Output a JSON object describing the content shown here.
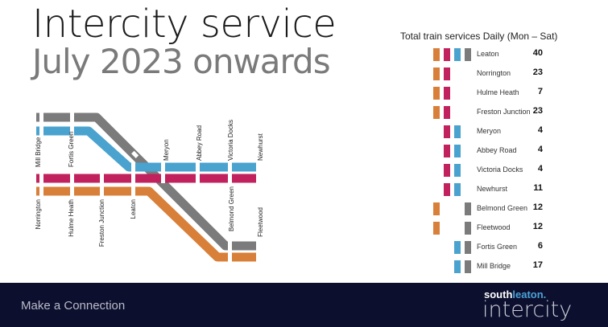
{
  "header": {
    "title_line1": "Intercity service",
    "title_line2": "July 2023 onwards"
  },
  "colors": {
    "grey": "#7b7b7b",
    "blue": "#4aa3cf",
    "magenta": "#c1225d",
    "orange": "#d8803a",
    "footer_bg": "#0d0f2e"
  },
  "map": {
    "stations": [
      "Mill Bridge",
      "Fortis Green",
      "Meryon",
      "Abbey Road",
      "Victoria Docks",
      "Newhurst",
      "Norrington",
      "Hulme Heath",
      "Freston Junction",
      "Leaton",
      "Belmond Green",
      "Fleetwood"
    ]
  },
  "panel": {
    "title": "Total train services Daily (Mon – Sat)",
    "rows": [
      {
        "station": "Leaton",
        "count": "40",
        "lines": [
          "orange",
          "magenta",
          "blue",
          "grey"
        ]
      },
      {
        "station": "Norrington",
        "count": "23",
        "lines": [
          "orange",
          "magenta"
        ]
      },
      {
        "station": "Hulme Heath",
        "count": "7",
        "lines": [
          "orange",
          "magenta"
        ]
      },
      {
        "station": "Freston Junction",
        "count": "23",
        "lines": [
          "orange",
          "magenta"
        ]
      },
      {
        "station": "Meryon",
        "count": "4",
        "lines": [
          "magenta",
          "blue"
        ]
      },
      {
        "station": "Abbey Road",
        "count": "4",
        "lines": [
          "magenta",
          "blue"
        ]
      },
      {
        "station": "Victoria Docks",
        "count": "4",
        "lines": [
          "magenta",
          "blue"
        ]
      },
      {
        "station": "Newhurst",
        "count": "11",
        "lines": [
          "magenta",
          "blue"
        ]
      },
      {
        "station": "Belmond Green",
        "count": "12",
        "lines": [
          "orange",
          "grey"
        ]
      },
      {
        "station": "Fleetwood",
        "count": "12",
        "lines": [
          "orange",
          "grey"
        ]
      },
      {
        "station": "Fortis Green",
        "count": "6",
        "lines": [
          "blue",
          "grey"
        ]
      },
      {
        "station": "Mill Bridge",
        "count": "17",
        "lines": [
          "blue",
          "grey"
        ]
      }
    ]
  },
  "footer": {
    "tagline": "Make a Connection",
    "brand_a": "south",
    "brand_b": "leaton.",
    "brand_c": "intercity"
  }
}
